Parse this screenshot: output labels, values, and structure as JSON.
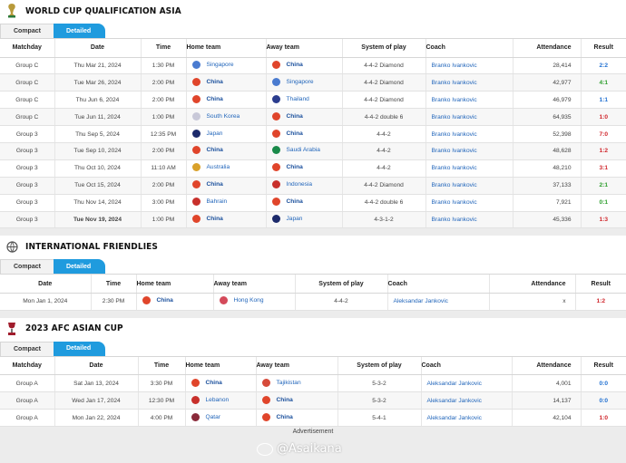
{
  "sections": [
    {
      "title": "WORLD CUP QUALIFICATION ASIA",
      "tabs": [
        "Compact",
        "Detailed"
      ],
      "headers": [
        "Matchday",
        "Date",
        "Time",
        "Home team",
        "Away team",
        "System of play",
        "Coach",
        "Attendance",
        "Result"
      ],
      "rows": [
        {
          "matchday": "Group C",
          "date": "Thu Mar 21, 2024",
          "time": "1:30 PM",
          "home": "Singapore",
          "away": "China",
          "system": "4-4-2 Diamond",
          "coach": "Branko Ivankovic",
          "attendance": "28,414",
          "result": "2:2",
          "outcome": "draw",
          "home_flag": "#4a7bd0",
          "away_flag": "#e0452b"
        },
        {
          "matchday": "Group C",
          "date": "Tue Mar 26, 2024",
          "time": "2:00 PM",
          "home": "China",
          "away": "Singapore",
          "system": "4-4-2 Diamond",
          "coach": "Branko Ivankovic",
          "attendance": "42,977",
          "result": "4:1",
          "outcome": "win",
          "home_flag": "#e0452b",
          "away_flag": "#4a7bd0"
        },
        {
          "matchday": "Group C",
          "date": "Thu Jun 6, 2024",
          "time": "2:00 PM",
          "home": "China",
          "away": "Thailand",
          "system": "4-4-2 Diamond",
          "coach": "Branko Ivankovic",
          "attendance": "46,979",
          "result": "1:1",
          "outcome": "draw",
          "home_flag": "#e0452b",
          "away_flag": "#2b3d8f"
        },
        {
          "matchday": "Group C",
          "date": "Tue Jun 11, 2024",
          "time": "1:00 PM",
          "home": "South Korea",
          "away": "China",
          "system": "4-4-2 double 6",
          "coach": "Branko Ivankovic",
          "attendance": "64,935",
          "result": "1:0",
          "outcome": "loss",
          "home_flag": "#c8c8d8",
          "away_flag": "#e0452b"
        },
        {
          "matchday": "Group 3",
          "date": "Thu Sep 5, 2024",
          "time": "12:35 PM",
          "home": "Japan",
          "away": "China",
          "system": "4-4-2",
          "coach": "Branko Ivankovic",
          "attendance": "52,398",
          "result": "7:0",
          "outcome": "loss",
          "home_flag": "#1c2a6b",
          "away_flag": "#e0452b"
        },
        {
          "matchday": "Group 3",
          "date": "Tue Sep 10, 2024",
          "time": "2:00 PM",
          "home": "China",
          "away": "Saudi Arabia",
          "system": "4-4-2",
          "coach": "Branko Ivankovic",
          "attendance": "48,628",
          "result": "1:2",
          "outcome": "loss",
          "home_flag": "#e0452b",
          "away_flag": "#1a8a4a"
        },
        {
          "matchday": "Group 3",
          "date": "Thu Oct 10, 2024",
          "time": "11:10 AM",
          "home": "Australia",
          "away": "China",
          "system": "4-4-2",
          "coach": "Branko Ivankovic",
          "attendance": "48,210",
          "result": "3:1",
          "outcome": "loss",
          "home_flag": "#d9a12a",
          "away_flag": "#e0452b"
        },
        {
          "matchday": "Group 3",
          "date": "Tue Oct 15, 2024",
          "time": "2:00 PM",
          "home": "China",
          "away": "Indonesia",
          "system": "4-4-2 Diamond",
          "coach": "Branko Ivankovic",
          "attendance": "37,133",
          "result": "2:1",
          "outcome": "win",
          "home_flag": "#e0452b",
          "away_flag": "#c8302b"
        },
        {
          "matchday": "Group 3",
          "date": "Thu Nov 14, 2024",
          "time": "3:00 PM",
          "home": "Bahrain",
          "away": "China",
          "system": "4-4-2 double 6",
          "coach": "Branko Ivankovic",
          "attendance": "7,921",
          "result": "0:1",
          "outcome": "win",
          "home_flag": "#c8302b",
          "away_flag": "#e0452b"
        },
        {
          "matchday": "Group 3",
          "date": "Tue Nov 19, 2024",
          "time": "1:00 PM",
          "home": "China",
          "away": "Japan",
          "system": "4-3-1-2",
          "coach": "Branko Ivankovic",
          "attendance": "45,336",
          "result": "1:3",
          "outcome": "loss",
          "home_flag": "#e0452b",
          "away_flag": "#1c2a6b"
        }
      ]
    },
    {
      "title": "INTERNATIONAL FRIENDLIES",
      "tabs": [
        "Compact",
        "Detailed"
      ],
      "headers": [
        "Date",
        "Time",
        "Home team",
        "Away team",
        "System of play",
        "Coach",
        "Attendance",
        "Result"
      ],
      "rows": [
        {
          "date": "Mon Jan 1, 2024",
          "time": "2:30 PM",
          "home": "China",
          "away": "Hong Kong",
          "system": "4-4-2",
          "coach": "Aleksandar Jankovic",
          "attendance": "x",
          "result": "1:2",
          "outcome": "loss",
          "home_flag": "#e0452b",
          "away_flag": "#d44a5a"
        }
      ]
    },
    {
      "title": "2023 AFC ASIAN CUP",
      "tabs": [
        "Compact",
        "Detailed"
      ],
      "headers": [
        "Matchday",
        "Date",
        "Time",
        "Home team",
        "Away team",
        "System of play",
        "Coach",
        "Attendance",
        "Result"
      ],
      "rows": [
        {
          "matchday": "Group A",
          "date": "Sat Jan 13, 2024",
          "time": "3:30 PM",
          "home": "China",
          "away": "Tajikistan",
          "system": "5-3-2",
          "coach": "Aleksandar Jankovic",
          "attendance": "4,001",
          "result": "0:0",
          "outcome": "draw",
          "home_flag": "#e0452b",
          "away_flag": "#d64a3a"
        },
        {
          "matchday": "Group A",
          "date": "Wed Jan 17, 2024",
          "time": "12:30 PM",
          "home": "Lebanon",
          "away": "China",
          "system": "5-3-2",
          "coach": "Aleksandar Jankovic",
          "attendance": "14,137",
          "result": "0:0",
          "outcome": "draw",
          "home_flag": "#c8302b",
          "away_flag": "#e0452b"
        },
        {
          "matchday": "Group A",
          "date": "Mon Jan 22, 2024",
          "time": "4:00 PM",
          "home": "Qatar",
          "away": "China",
          "system": "5-4-1",
          "coach": "Aleksandar Jankovic",
          "attendance": "42,104",
          "result": "1:0",
          "outcome": "loss",
          "home_flag": "#8a2a3a",
          "away_flag": "#e0452b"
        }
      ]
    }
  ],
  "advertisement": "Advertisement",
  "watermark": "@Asaikana",
  "colors": {
    "accent": "#1f9bde",
    "win": "#2a9d2a",
    "loss": "#d0252b",
    "draw": "#1f6fd1"
  }
}
